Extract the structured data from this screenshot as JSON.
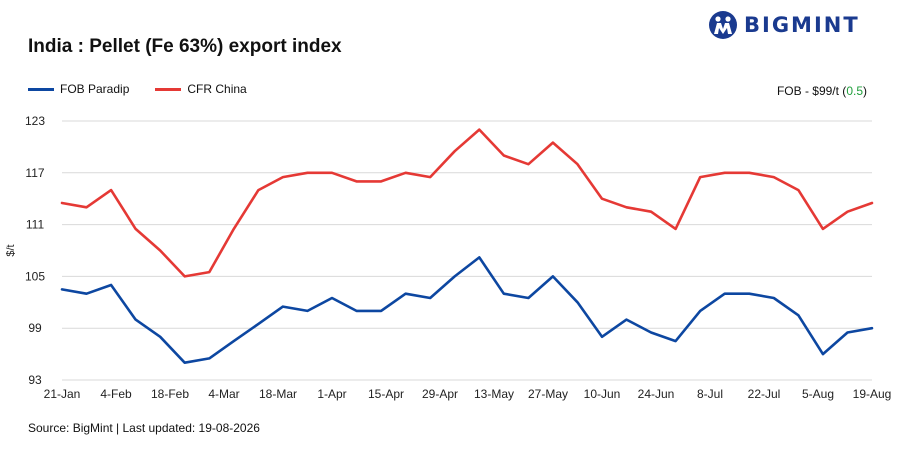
{
  "header": {
    "title": "India : Pellet (Fe 63%) export index",
    "logo_text": "BIGMINT",
    "fob_note_prefix": "FOB - $99/t (",
    "fob_note_change": "0.5",
    "fob_note_suffix": ")",
    "change_color": "#1e9e3a"
  },
  "footer": {
    "source": "Source: BigMint | Last updated: 19-08-2026"
  },
  "chart_data": {
    "type": "line",
    "title": "India : Pellet (Fe 63%) export index",
    "xlabel": "",
    "ylabel": "$/t",
    "ylim": [
      93,
      123
    ],
    "yticks": [
      93,
      99,
      105,
      111,
      117,
      123
    ],
    "grid": true,
    "legend_position": "top-left",
    "x_tick_labels": [
      "21-Jan",
      "4-Feb",
      "18-Feb",
      "4-Mar",
      "18-Mar",
      "1-Apr",
      "15-Apr",
      "29-Apr",
      "13-May",
      "27-May",
      "10-Jun",
      "24-Jun",
      "8-Jul",
      "22-Jul",
      "5-Aug",
      "19-Aug"
    ],
    "x": [
      "21-Jan",
      "",
      "28-Jan",
      "4-Feb",
      "11-Feb",
      "18-Feb",
      "25-Feb",
      "4-Mar",
      "11-Mar",
      "18-Mar",
      "25-Mar",
      "1-Apr",
      "8-Apr",
      "15-Apr",
      "22-Apr",
      "29-Apr",
      "6-May",
      "13-May",
      "20-May",
      "27-May",
      "",
      "3-Jun",
      "10-Jun",
      "17-Jun",
      "24-Jun",
      "1-Jul",
      "8-Jul",
      "",
      "15-Jul",
      "22-Jul",
      "29-Jul",
      "5-Aug",
      "12-Aug",
      "19-Aug"
    ],
    "series": [
      {
        "name": "FOB Paradip",
        "color": "#0d47a1",
        "values": [
          103.5,
          103,
          104,
          100,
          98,
          95,
          95.5,
          97.5,
          99.5,
          101.5,
          101,
          102.5,
          101,
          101,
          103,
          102.5,
          105,
          107.2,
          103,
          102.5,
          105,
          102,
          98,
          100,
          98.5,
          97.5,
          101,
          103,
          103,
          102.5,
          100.5,
          96,
          98.5,
          99
        ]
      },
      {
        "name": "CFR China",
        "color": "#e53935",
        "values": [
          113.5,
          113,
          115,
          110.5,
          108,
          105,
          105.5,
          110.5,
          115,
          116.5,
          117,
          117,
          116,
          116,
          117,
          116.5,
          119.5,
          122,
          119,
          118,
          120.5,
          118,
          114,
          113,
          112.5,
          110.5,
          116.5,
          117,
          117,
          116.5,
          115,
          110.5,
          112.5,
          113.5
        ]
      }
    ]
  }
}
